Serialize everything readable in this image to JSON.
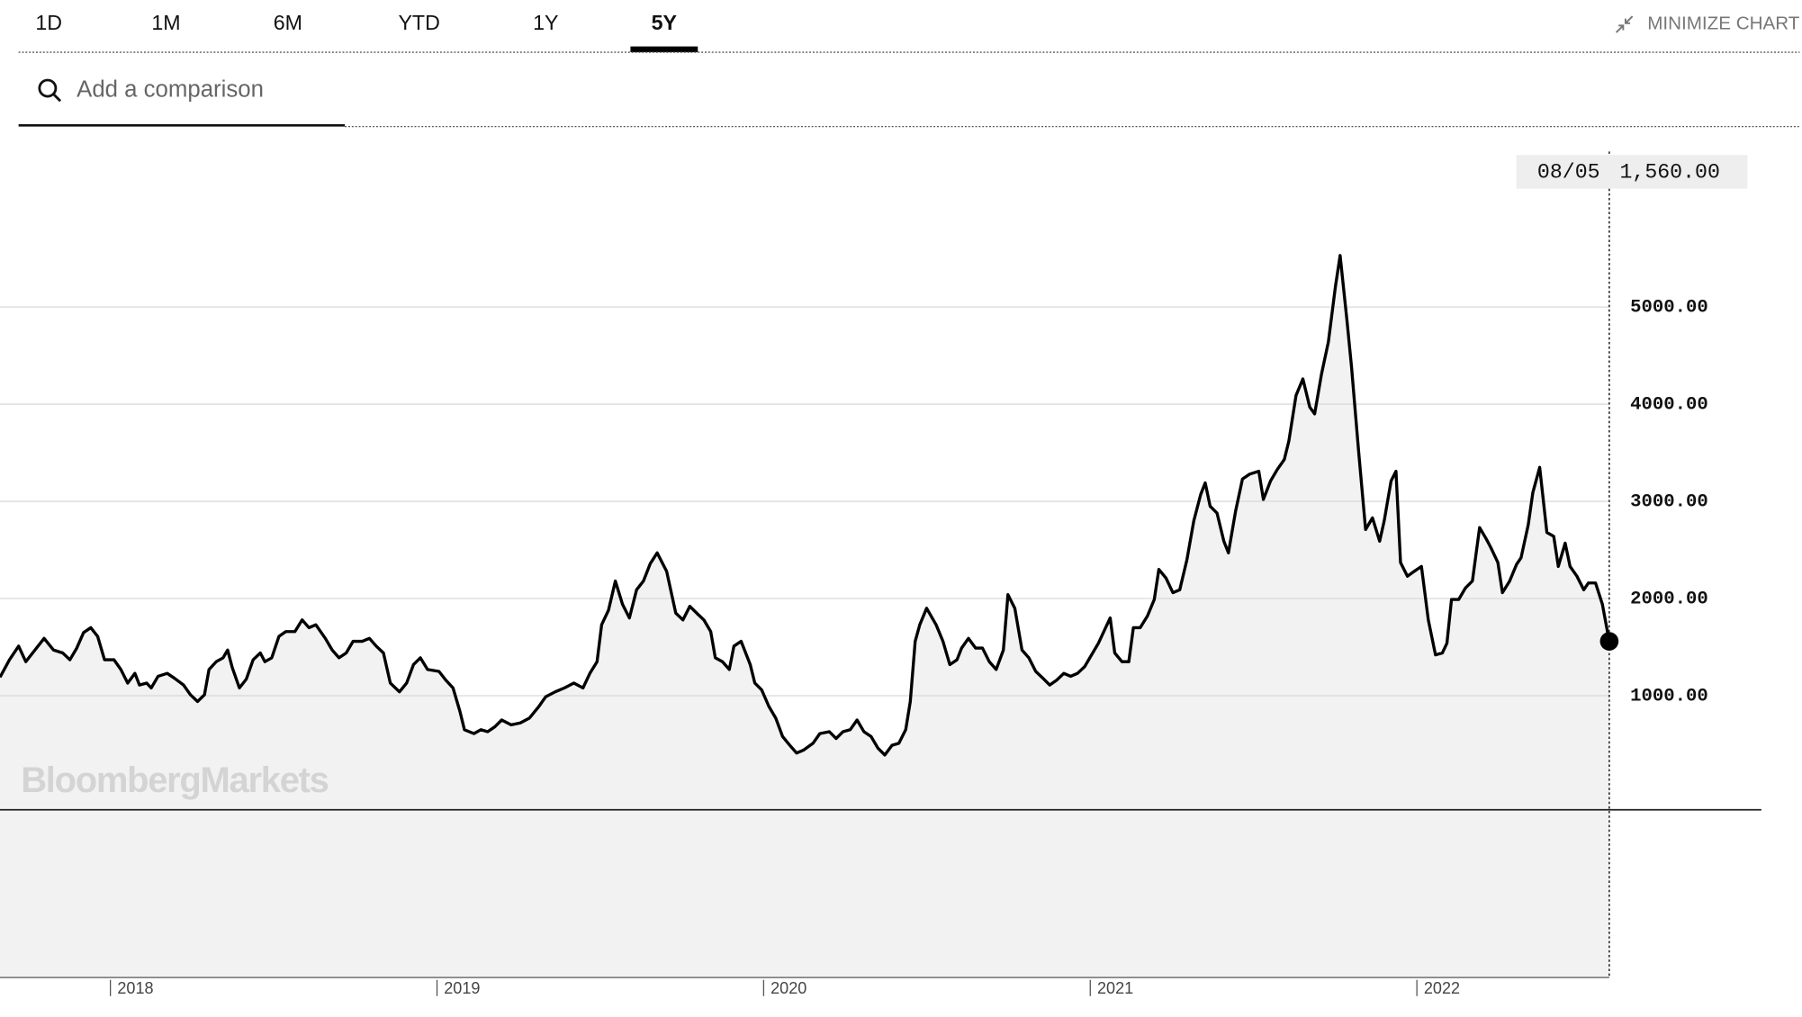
{
  "tabs": [
    "1D",
    "1M",
    "6M",
    "YTD",
    "1Y",
    "5Y"
  ],
  "minimize_label": "MINIMIZE CHART",
  "search_placeholder": "Add a comparison",
  "watermark": "BloombergMarkets",
  "chart_data": {
    "type": "line",
    "color": "#000000",
    "area_color": "#f2f2f2",
    "x": [
      2017.662,
      2017.691,
      2017.719,
      2017.741,
      2017.769,
      2017.797,
      2017.826,
      2017.854,
      2017.876,
      2017.897,
      2017.918,
      2017.94,
      2017.961,
      2017.982,
      2018.011,
      2018.032,
      2018.053,
      2018.075,
      2018.089,
      2018.111,
      2018.125,
      2018.146,
      2018.174,
      2018.196,
      2018.224,
      2018.245,
      2018.267,
      2018.288,
      2018.302,
      2018.324,
      2018.345,
      2018.359,
      2018.373,
      2018.395,
      2018.416,
      2018.437,
      2018.459,
      2018.473,
      2018.494,
      2018.516,
      2018.537,
      2018.565,
      2018.587,
      2018.608,
      2018.629,
      2018.658,
      2018.679,
      2018.7,
      2018.722,
      2018.743,
      2018.771,
      2018.793,
      2018.814,
      2018.836,
      2018.857,
      2018.885,
      2018.907,
      2018.928,
      2018.949,
      2018.971,
      2019.006,
      2019.027,
      2019.049,
      2019.07,
      2019.084,
      2019.113,
      2019.134,
      2019.155,
      2019.177,
      2019.198,
      2019.227,
      2019.255,
      2019.283,
      2019.312,
      2019.333,
      2019.362,
      2019.39,
      2019.419,
      2019.447,
      2019.468,
      2019.49,
      2019.504,
      2019.525,
      2019.546,
      2019.568,
      2019.589,
      2019.611,
      2019.632,
      2019.653,
      2019.674,
      2019.703,
      2019.731,
      2019.753,
      2019.774,
      2019.795,
      2019.817,
      2019.838,
      2019.852,
      2019.874,
      2019.895,
      2019.909,
      2019.931,
      2019.959,
      2019.973,
      2019.994,
      2020.016,
      2020.037,
      2020.058,
      2020.08,
      2020.101,
      2020.122,
      2020.151,
      2020.172,
      2020.201,
      2020.222,
      2020.243,
      2020.265,
      2020.286,
      2020.307,
      2020.329,
      2020.35,
      2020.371,
      2020.393,
      2020.414,
      2020.435,
      2020.449,
      2020.464,
      2020.478,
      2020.499,
      2020.528,
      2020.549,
      2020.57,
      2020.592,
      2020.606,
      2020.627,
      2020.649,
      2020.67,
      2020.691,
      2020.712,
      2020.734,
      2020.748,
      2020.769,
      2020.791,
      2020.812,
      2020.833,
      2020.855,
      2020.876,
      2020.897,
      2020.919,
      2020.94,
      2020.961,
      2020.983,
      2021.004,
      2021.025,
      2021.047,
      2021.061,
      2021.075,
      2021.097,
      2021.118,
      2021.132,
      2021.153,
      2021.175,
      2021.196,
      2021.21,
      2021.232,
      2021.253,
      2021.274,
      2021.296,
      2021.317,
      2021.338,
      2021.352,
      2021.367,
      2021.388,
      2021.409,
      2021.423,
      2021.445,
      2021.466,
      2021.488,
      2021.516,
      2021.53,
      2021.552,
      2021.573,
      2021.594,
      2021.608,
      2021.63,
      2021.651,
      2021.672,
      2021.687,
      2021.708,
      2021.729,
      2021.751,
      2021.765,
      2021.786,
      2021.8,
      2021.822,
      2021.843,
      2021.864,
      2021.886,
      2021.9,
      2021.921,
      2021.936,
      2021.95,
      2021.971,
      2021.992,
      2022.014,
      2022.035,
      2022.057,
      2022.078,
      2022.092,
      2022.106,
      2022.128,
      2022.149,
      2022.17,
      2022.192,
      2022.213,
      2022.227,
      2022.248,
      2022.262,
      2022.284,
      2022.305,
      2022.319,
      2022.341,
      2022.355,
      2022.376,
      2022.398,
      2022.419,
      2022.433,
      2022.454,
      2022.469,
      2022.49,
      2022.511,
      2022.525,
      2022.547,
      2022.568,
      2022.589
    ],
    "values": [
      1190,
      1370,
      1510,
      1350,
      1470,
      1590,
      1470,
      1440,
      1370,
      1490,
      1650,
      1700,
      1610,
      1370,
      1370,
      1270,
      1130,
      1230,
      1110,
      1130,
      1080,
      1200,
      1230,
      1180,
      1110,
      1010,
      940,
      1010,
      1270,
      1350,
      1390,
      1470,
      1290,
      1080,
      1170,
      1370,
      1440,
      1350,
      1390,
      1610,
      1660,
      1660,
      1780,
      1700,
      1730,
      1590,
      1470,
      1390,
      1440,
      1560,
      1560,
      1590,
      1510,
      1440,
      1130,
      1040,
      1130,
      1320,
      1390,
      1270,
      1250,
      1160,
      1080,
      840,
      650,
      610,
      650,
      630,
      680,
      750,
      700,
      720,
      770,
      890,
      990,
      1040,
      1080,
      1130,
      1080,
      1230,
      1350,
      1730,
      1880,
      2180,
      1940,
      1800,
      2090,
      2180,
      2360,
      2470,
      2280,
      1850,
      1780,
      1920,
      1850,
      1780,
      1660,
      1390,
      1350,
      1270,
      1510,
      1560,
      1320,
      1130,
      1060,
      890,
      770,
      580,
      490,
      410,
      440,
      510,
      610,
      630,
      560,
      630,
      650,
      750,
      630,
      580,
      460,
      390,
      490,
      510,
      650,
      940,
      1560,
      1730,
      1900,
      1730,
      1560,
      1320,
      1370,
      1490,
      1590,
      1490,
      1490,
      1350,
      1270,
      1470,
      2040,
      1900,
      1470,
      1390,
      1250,
      1180,
      1110,
      1160,
      1230,
      1200,
      1230,
      1300,
      1420,
      1540,
      1700,
      1800,
      1440,
      1350,
      1350,
      1700,
      1700,
      1820,
      1990,
      2300,
      2210,
      2060,
      2090,
      2400,
      2800,
      3070,
      3190,
      2950,
      2880,
      2590,
      2470,
      2900,
      3230,
      3280,
      3310,
      3020,
      3210,
      3330,
      3430,
      3620,
      4090,
      4260,
      3970,
      3900,
      4310,
      4640,
      5220,
      5530,
      4860,
      4380,
      3500,
      2710,
      2830,
      2590,
      2800,
      3210,
      3310,
      2370,
      2230,
      2280,
      2330,
      1780,
      1420,
      1440,
      1540,
      1990,
      1990,
      2110,
      2180,
      2730,
      2610,
      2520,
      2370,
      2060,
      2180,
      2350,
      2420,
      2760,
      3090,
      3350,
      2680,
      2640,
      2330,
      2570,
      2330,
      2230,
      2090,
      2160,
      2160,
      1940,
      1560
    ],
    "xlim": [
      2017.662,
      2022.589
    ],
    "xticks": [
      2018,
      2019,
      2020,
      2021,
      2022
    ],
    "ylim": [
      -1900,
      6600
    ],
    "yticks": [
      {
        "value": 1000,
        "label": "1000.00"
      },
      {
        "value": 2000,
        "label": "2000.00"
      },
      {
        "value": 3000,
        "label": "3000.00"
      },
      {
        "value": 4000,
        "label": "4000.00"
      },
      {
        "value": 5000,
        "label": "5000.00"
      }
    ],
    "grid": true,
    "crosshair": {
      "date": "08/05",
      "value": "1,560.00"
    }
  }
}
